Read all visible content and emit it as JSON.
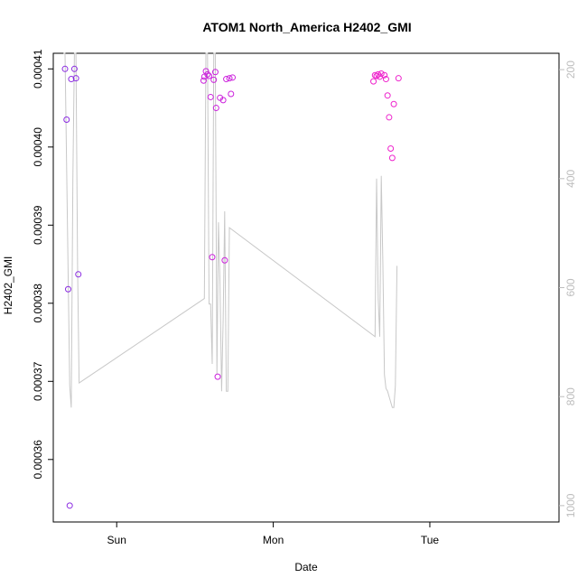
{
  "chart_data": {
    "type": "scatter",
    "title": "ATOM1 North_America H2402_GMI",
    "xlabel": "Date",
    "ylabel": "H2402_GMI",
    "x_range_days": [
      -0.405,
      2.825
    ],
    "ylim": [
      0.000352,
      0.000412
    ],
    "right_ylim": [
      1030,
      170
    ],
    "x_ticks": [
      {
        "value": 0,
        "label": "Sun"
      },
      {
        "value": 1,
        "label": "Mon"
      },
      {
        "value": 2,
        "label": "Tue"
      }
    ],
    "y_ticks": [
      {
        "value": 0.00036,
        "label": "0.00036"
      },
      {
        "value": 0.00037,
        "label": "0.00037"
      },
      {
        "value": 0.00038,
        "label": "0.00038"
      },
      {
        "value": 0.00039,
        "label": "0.00039"
      },
      {
        "value": 0.0004,
        "label": "0.00040"
      },
      {
        "value": 0.00041,
        "label": "0.00041"
      }
    ],
    "right_ticks": [
      {
        "value": 200,
        "label": "200"
      },
      {
        "value": 400,
        "label": "400"
      },
      {
        "value": 600,
        "label": "600"
      },
      {
        "value": 800,
        "label": "800"
      },
      {
        "value": 1000,
        "label": "1000"
      }
    ],
    "points": [
      {
        "x": -0.33,
        "y": 0.00041,
        "color": "#8b2be2"
      },
      {
        "x": -0.32,
        "y": 0.0004035,
        "color": "#8b2be2"
      },
      {
        "x": -0.31,
        "y": 0.0003818,
        "color": "#8b2be2"
      },
      {
        "x": -0.3,
        "y": 0.0003541,
        "color": "#8b2be2"
      },
      {
        "x": -0.29,
        "y": 0.0004087,
        "color": "#8b2be2"
      },
      {
        "x": -0.27,
        "y": 0.00041,
        "color": "#8b2be2"
      },
      {
        "x": -0.26,
        "y": 0.0004088,
        "color": "#8b2be2"
      },
      {
        "x": -0.245,
        "y": 0.0003837,
        "color": "#8b2be2"
      },
      {
        "x": 0.555,
        "y": 0.0004085,
        "color": "#cc22dd"
      },
      {
        "x": 0.56,
        "y": 0.000409,
        "color": "#cc22dd"
      },
      {
        "x": 0.57,
        "y": 0.0004097,
        "color": "#cc22dd"
      },
      {
        "x": 0.58,
        "y": 0.0004093,
        "color": "#cc22dd"
      },
      {
        "x": 0.59,
        "y": 0.0004091,
        "color": "#cc22dd"
      },
      {
        "x": 0.6,
        "y": 0.0004064,
        "color": "#cc22dd"
      },
      {
        "x": 0.61,
        "y": 0.0003859,
        "color": "#cc22dd"
      },
      {
        "x": 0.62,
        "y": 0.0004086,
        "color": "#cc22dd"
      },
      {
        "x": 0.63,
        "y": 0.0004096,
        "color": "#cc22dd"
      },
      {
        "x": 0.635,
        "y": 0.000405,
        "color": "#cc22dd"
      },
      {
        "x": 0.645,
        "y": 0.0003706,
        "color": "#cc22dd"
      },
      {
        "x": 0.66,
        "y": 0.0004063,
        "color": "#cc22dd"
      },
      {
        "x": 0.68,
        "y": 0.000406,
        "color": "#cc22dd"
      },
      {
        "x": 0.69,
        "y": 0.0003855,
        "color": "#cc22dd"
      },
      {
        "x": 0.7,
        "y": 0.0004087,
        "color": "#cc22dd"
      },
      {
        "x": 0.72,
        "y": 0.0004088,
        "color": "#cc22dd"
      },
      {
        "x": 0.73,
        "y": 0.0004068,
        "color": "#cc22dd"
      },
      {
        "x": 0.74,
        "y": 0.0004089,
        "color": "#cc22dd"
      },
      {
        "x": 1.64,
        "y": 0.0004084,
        "color": "#ee22cc"
      },
      {
        "x": 1.65,
        "y": 0.0004092,
        "color": "#ee22cc"
      },
      {
        "x": 1.66,
        "y": 0.0004091,
        "color": "#ee22cc"
      },
      {
        "x": 1.67,
        "y": 0.0004093,
        "color": "#ee22cc"
      },
      {
        "x": 1.68,
        "y": 0.000409,
        "color": "#ee22cc"
      },
      {
        "x": 1.69,
        "y": 0.0004094,
        "color": "#ee22cc"
      },
      {
        "x": 1.71,
        "y": 0.0004092,
        "color": "#ee22cc"
      },
      {
        "x": 1.72,
        "y": 0.0004087,
        "color": "#ee22cc"
      },
      {
        "x": 1.73,
        "y": 0.0004066,
        "color": "#ee22cc"
      },
      {
        "x": 1.74,
        "y": 0.0004038,
        "color": "#ee22cc"
      },
      {
        "x": 1.75,
        "y": 0.0003998,
        "color": "#ee22cc"
      },
      {
        "x": 1.76,
        "y": 0.0003986,
        "color": "#ee22cc"
      },
      {
        "x": 1.77,
        "y": 0.0004055,
        "color": "#ee22cc"
      },
      {
        "x": 1.8,
        "y": 0.0004088,
        "color": "#ee22cc"
      }
    ],
    "line": {
      "color": "#c8c8c8",
      "axis": "right",
      "points": [
        [
          -0.34,
          0
        ],
        [
          -0.33,
          170
        ],
        [
          -0.31,
          580
        ],
        [
          -0.3,
          780
        ],
        [
          -0.29,
          820
        ],
        [
          -0.28,
          400
        ],
        [
          -0.27,
          0
        ],
        [
          -0.26,
          0
        ],
        [
          -0.25,
          560
        ],
        [
          -0.24,
          775
        ],
        [
          0.56,
          620
        ],
        [
          0.57,
          0
        ],
        [
          0.58,
          0
        ],
        [
          0.59,
          630
        ],
        [
          0.6,
          630
        ],
        [
          0.61,
          740
        ],
        [
          0.62,
          0
        ],
        [
          0.63,
          140
        ],
        [
          0.64,
          760
        ],
        [
          0.65,
          480
        ],
        [
          0.66,
          590
        ],
        [
          0.67,
          790
        ],
        [
          0.68,
          660
        ],
        [
          0.69,
          460
        ],
        [
          0.7,
          790
        ],
        [
          0.71,
          790
        ],
        [
          0.72,
          490
        ],
        [
          1.65,
          690
        ],
        [
          1.66,
          400
        ],
        [
          1.67,
          620
        ],
        [
          1.68,
          690
        ],
        [
          1.69,
          395
        ],
        [
          1.7,
          560
        ],
        [
          1.71,
          760
        ],
        [
          1.72,
          785
        ],
        [
          1.73,
          790
        ],
        [
          1.74,
          800
        ],
        [
          1.76,
          820
        ],
        [
          1.77,
          820
        ],
        [
          1.78,
          780
        ],
        [
          1.79,
          560
        ]
      ]
    }
  }
}
